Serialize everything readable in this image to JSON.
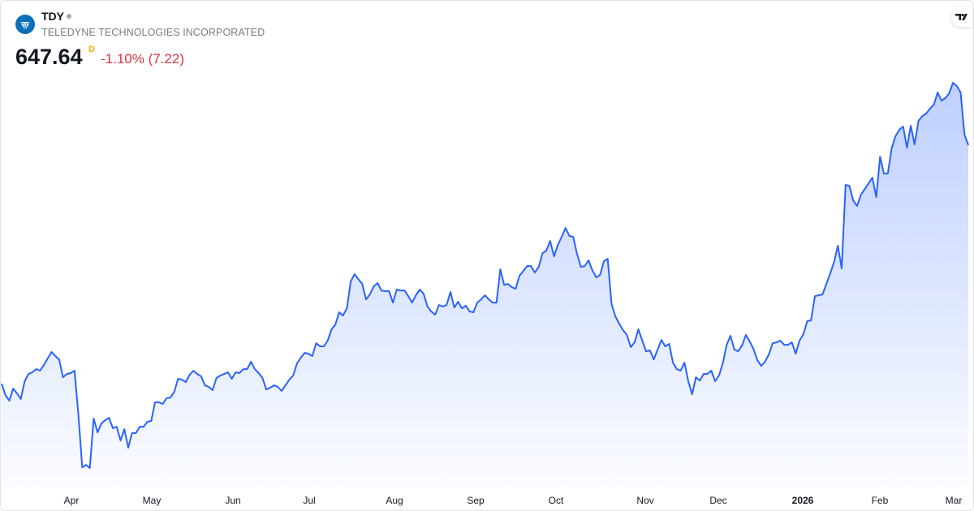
{
  "header": {
    "ticker": "TDY",
    "company": "TELEDYNE TECHNOLOGIES INCORPORATED",
    "price": "647.64",
    "interval": "D",
    "change": "-1.10% (7.22)"
  },
  "colors": {
    "line": "#2962FF",
    "change_negative": "#e0323f",
    "interval": "#f7a600",
    "logo": "#0c6fb8"
  },
  "chart_data": {
    "type": "area",
    "title": "",
    "xlabel": "",
    "ylabel": "",
    "y_axis_shown": false,
    "grid": false,
    "x_tick_labels": [
      "Apr",
      "May",
      "Jun",
      "Jul",
      "Aug",
      "Sep",
      "Oct",
      "Nov",
      "Dec",
      "2026",
      "Feb",
      "Mar"
    ],
    "series": [
      {
        "values": [
          479.4,
          471.4,
          467.4,
          476.0,
          472.6,
          468.6,
          481.2,
          486.3,
          487.5,
          489.7,
          488.6,
          492.6,
          497.2,
          501.8,
          498.9,
          496.6,
          484.0,
          486.3,
          486.9,
          488.6,
          458.3,
          420.5,
          422.2,
          420.0,
          454.9,
          445.1,
          451.4,
          453.7,
          455.4,
          448.0,
          449.1,
          439.4,
          447.4,
          434.3,
          444.6,
          444.6,
          449.1,
          449.1,
          452.6,
          453.1,
          466.3,
          466.3,
          465.1,
          469.2,
          469.7,
          473.7,
          482.9,
          482.3,
          480.6,
          485.7,
          488.6,
          486.3,
          484.6,
          478.3,
          477.2,
          474.9,
          483.5,
          485.2,
          486.3,
          487.5,
          482.9,
          487.5,
          486.9,
          489.7,
          489.7,
          494.9,
          489.7,
          486.9,
          483.5,
          475.4,
          476.6,
          478.3,
          477.2,
          474.3,
          478.3,
          482.3,
          485.2,
          493.7,
          497.8,
          501.2,
          500.6,
          498.9,
          508.0,
          505.8,
          505.8,
          509.8,
          517.8,
          521.2,
          529.8,
          527.5,
          532.6,
          551.5,
          556.7,
          553.2,
          549.8,
          538.9,
          542.4,
          548.1,
          550.4,
          545.2,
          544.7,
          544.7,
          536.6,
          545.8,
          545.2,
          545.2,
          541.2,
          536.6,
          541.8,
          545.8,
          542.9,
          533.8,
          530.4,
          528.1,
          534.9,
          533.8,
          534.9,
          544.1,
          533.2,
          537.2,
          532.6,
          534.4,
          530.4,
          529.8,
          536.6,
          538.9,
          541.8,
          538.9,
          536.6,
          536.6,
          560.1,
          549.2,
          549.8,
          547.5,
          546.4,
          555.5,
          559.0,
          562.4,
          562.4,
          557.8,
          561.8,
          571.5,
          573.3,
          580.1,
          569.3,
          577.3,
          583.0,
          589.3,
          583.6,
          583.0,
          571.0,
          561.8,
          562.4,
          566.4,
          559.5,
          554.4,
          556.1,
          565.8,
          567.5,
          535.5,
          526.9,
          521.8,
          517.2,
          513.8,
          505.2,
          508.6,
          517.8,
          509.8,
          502.3,
          502.9,
          496.6,
          503.5,
          510.3,
          505.8,
          507.5,
          494.3,
          489.7,
          488.6,
          494.3,
          481.2,
          472.0,
          484.0,
          481.7,
          486.3,
          486.3,
          488.6,
          481.2,
          485.2,
          493.7,
          506.9,
          513.2,
          503.5,
          502.3,
          506.3,
          513.8,
          509.2,
          504.0,
          496.0,
          492.0,
          494.9,
          500.0,
          508.0,
          508.6,
          509.8,
          506.9,
          506.9,
          508.6,
          500.6,
          509.8,
          514.3,
          523.5,
          524.1,
          541.2,
          541.8,
          542.4,
          549.8,
          557.2,
          565.2,
          576.7,
          560.7,
          619.6,
          619.0,
          608.7,
          604.7,
          612.7,
          616.7,
          620.7,
          624.7,
          611.0,
          639.6,
          627.6,
          627.6,
          645.3,
          653.9,
          658.5,
          660.8,
          645.9,
          661.3,
          648.2,
          664.8,
          668.2,
          669.9,
          673.4,
          676.2,
          684.8,
          679.1,
          680.8,
          684.2,
          691.7,
          689.4,
          684.8,
          655.1,
          647.64
        ]
      }
    ]
  }
}
